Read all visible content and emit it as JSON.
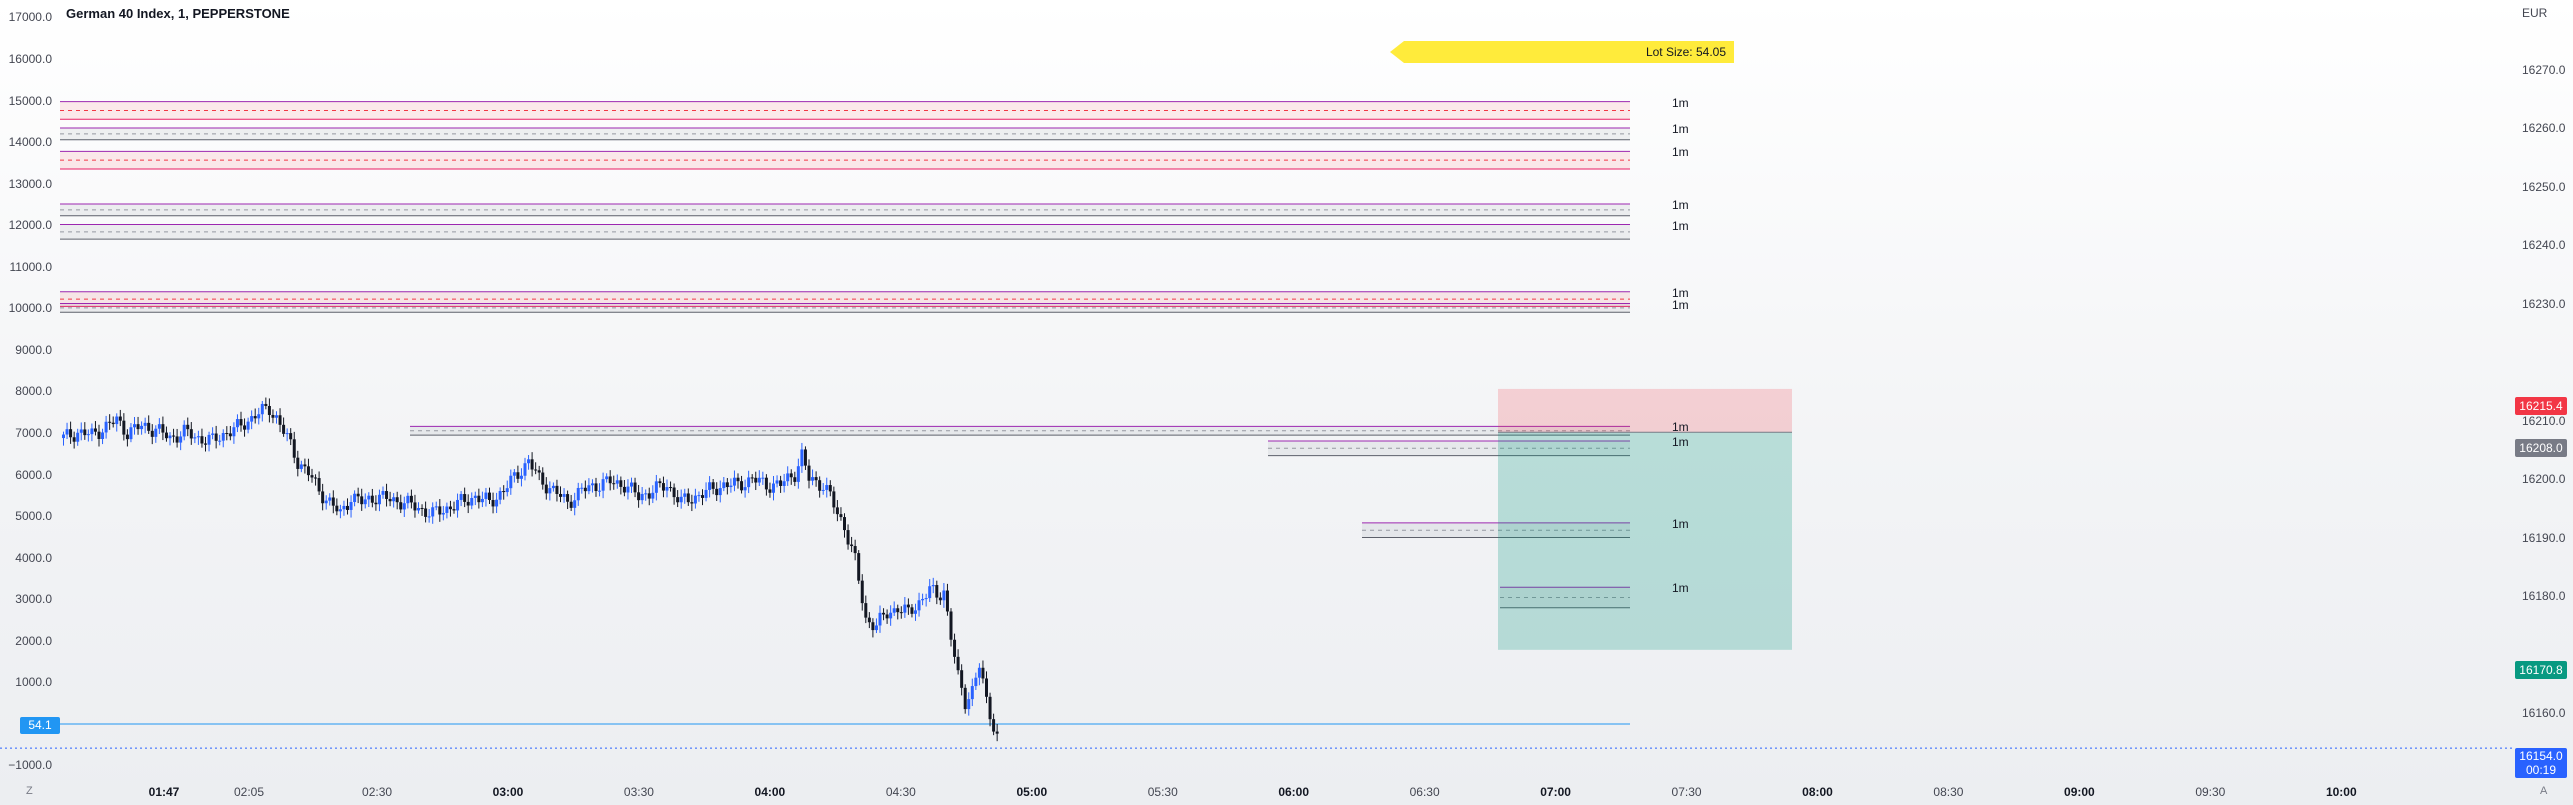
{
  "header": {
    "title": "German 40 Index, 1, PEPPERSTONE",
    "currency": "EUR"
  },
  "lot_badge": "Lot Size: 54.05",
  "left_axis": [
    "17000.0",
    "16000.0",
    "15000.0",
    "14000.0",
    "13000.0",
    "12000.0",
    "11000.0",
    "10000.0",
    "9000.0",
    "8000.0",
    "7000.0",
    "6000.0",
    "5000.0",
    "4000.0",
    "3000.0",
    "2000.0",
    "1000.0",
    "−1000.0"
  ],
  "right_axis": [
    "16270.0",
    "16260.0",
    "16250.0",
    "16240.0",
    "16230.0",
    "16210.0",
    "16200.0",
    "16190.0",
    "16180.0",
    "16160.0"
  ],
  "time_axis": [
    {
      "label": "01:47",
      "major": true
    },
    {
      "label": "02:05",
      "major": false
    },
    {
      "label": "02:30",
      "major": false
    },
    {
      "label": "03:00",
      "major": true
    },
    {
      "label": "03:30",
      "major": false
    },
    {
      "label": "04:00",
      "major": true
    },
    {
      "label": "04:30",
      "major": false
    },
    {
      "label": "05:00",
      "major": true
    },
    {
      "label": "05:30",
      "major": false
    },
    {
      "label": "06:00",
      "major": true
    },
    {
      "label": "06:30",
      "major": false
    },
    {
      "label": "07:00",
      "major": true
    },
    {
      "label": "07:30",
      "major": false
    },
    {
      "label": "08:00",
      "major": true
    },
    {
      "label": "08:30",
      "major": false
    },
    {
      "label": "09:00",
      "major": true
    },
    {
      "label": "09:30",
      "major": false
    },
    {
      "label": "10:00",
      "major": true
    }
  ],
  "timeframe_label": "1m",
  "price_tags": {
    "stop": {
      "value": "16215.4",
      "color": "#f23645"
    },
    "entry": {
      "value": "16208.0",
      "color": "#787b86"
    },
    "target": {
      "value": "16170.8",
      "color": "#089981"
    },
    "last": {
      "value": "16154.0",
      "countdown": "00:19",
      "color": "#2962ff"
    }
  },
  "left_tag": "54.1",
  "corner_left": "Z",
  "corner_right": "A",
  "chart_data": {
    "type": "candlestick",
    "symbol": "German 40 Index",
    "interval": "1",
    "source": "PEPPERSTONE",
    "right_axis_range": [
      16152,
      16275
    ],
    "left_axis_range": [
      -1000,
      17000
    ],
    "last_price": 16154.0,
    "zones": [
      {
        "low": 16261.5,
        "high": 16264.5,
        "type": "supply"
      },
      {
        "low": 16258.0,
        "high": 16260.0,
        "type": "demand"
      },
      {
        "low": 16253.0,
        "high": 16256.0,
        "type": "supply"
      },
      {
        "low": 16245.0,
        "high": 16247.0,
        "type": "demand"
      },
      {
        "low": 16241.0,
        "high": 16243.5,
        "type": "demand"
      },
      {
        "low": 16229.5,
        "high": 16232.0,
        "type": "supply"
      },
      {
        "low": 16228.5,
        "high": 16230.0,
        "type": "demand"
      },
      {
        "low": 16207.5,
        "high": 16209.0,
        "type": "demand"
      },
      {
        "low": 16204.0,
        "high": 16206.5,
        "type": "demand"
      },
      {
        "low": 16190.0,
        "high": 16192.5,
        "type": "demand"
      },
      {
        "low": 16178.0,
        "high": 16181.5,
        "type": "demand"
      }
    ],
    "position": {
      "type": "short",
      "entry": 16208.0,
      "stop": 16215.4,
      "target": 16170.8
    },
    "horizontal_line_left_axis": 54.1,
    "price_path": [
      [
        0,
        16207
      ],
      [
        4,
        16208
      ],
      [
        8,
        16207.5
      ],
      [
        12,
        16209
      ],
      [
        15,
        16210
      ],
      [
        18,
        16208
      ],
      [
        22,
        16209
      ],
      [
        26,
        16208.5
      ],
      [
        30,
        16207
      ],
      [
        34,
        16208
      ],
      [
        38,
        16207
      ],
      [
        42,
        16206.5
      ],
      [
        46,
        16208
      ],
      [
        50,
        16209
      ],
      [
        54,
        16211
      ],
      [
        58,
        16212
      ],
      [
        60,
        16210.5
      ],
      [
        63,
        16207
      ],
      [
        66,
        16203
      ],
      [
        69,
        16201
      ],
      [
        72,
        16198
      ],
      [
        75,
        16196
      ],
      [
        78,
        16194
      ],
      [
        81,
        16197
      ],
      [
        84,
        16196
      ],
      [
        88,
        16197
      ],
      [
        92,
        16196.5
      ],
      [
        96,
        16196
      ],
      [
        100,
        16195
      ],
      [
        104,
        16194
      ],
      [
        108,
        16195
      ],
      [
        112,
        16196
      ],
      [
        116,
        16197
      ],
      [
        120,
        16196
      ],
      [
        124,
        16198
      ],
      [
        128,
        16201
      ],
      [
        131,
        16203
      ],
      [
        134,
        16200
      ],
      [
        138,
        16198
      ],
      [
        142,
        16196
      ],
      [
        146,
        16198
      ],
      [
        150,
        16199
      ],
      [
        154,
        16199.5
      ],
      [
        158,
        16199
      ],
      [
        162,
        16197
      ],
      [
        166,
        16198
      ],
      [
        170,
        16199
      ],
      [
        174,
        16196
      ],
      [
        178,
        16197
      ],
      [
        182,
        16198
      ],
      [
        186,
        16199
      ],
      [
        190,
        16199
      ],
      [
        194,
        16200
      ],
      [
        198,
        16199
      ],
      [
        202,
        16199
      ],
      [
        206,
        16201
      ],
      [
        208,
        16204
      ],
      [
        210,
        16200
      ],
      [
        214,
        16199
      ],
      [
        216,
        16197
      ],
      [
        218,
        16194
      ],
      [
        220,
        16192
      ],
      [
        223,
        16186
      ],
      [
        226,
        16176
      ],
      [
        229,
        16175
      ],
      [
        232,
        16177
      ],
      [
        235,
        16178
      ],
      [
        238,
        16177
      ],
      [
        241,
        16179
      ],
      [
        244,
        16181
      ],
      [
        246,
        16180
      ],
      [
        248,
        16181
      ],
      [
        250,
        16173
      ],
      [
        252,
        16166
      ],
      [
        254,
        16162
      ],
      [
        256,
        16164
      ],
      [
        258,
        16168
      ],
      [
        260,
        16162
      ],
      [
        262,
        16158
      ],
      [
        264,
        16154
      ]
    ]
  }
}
